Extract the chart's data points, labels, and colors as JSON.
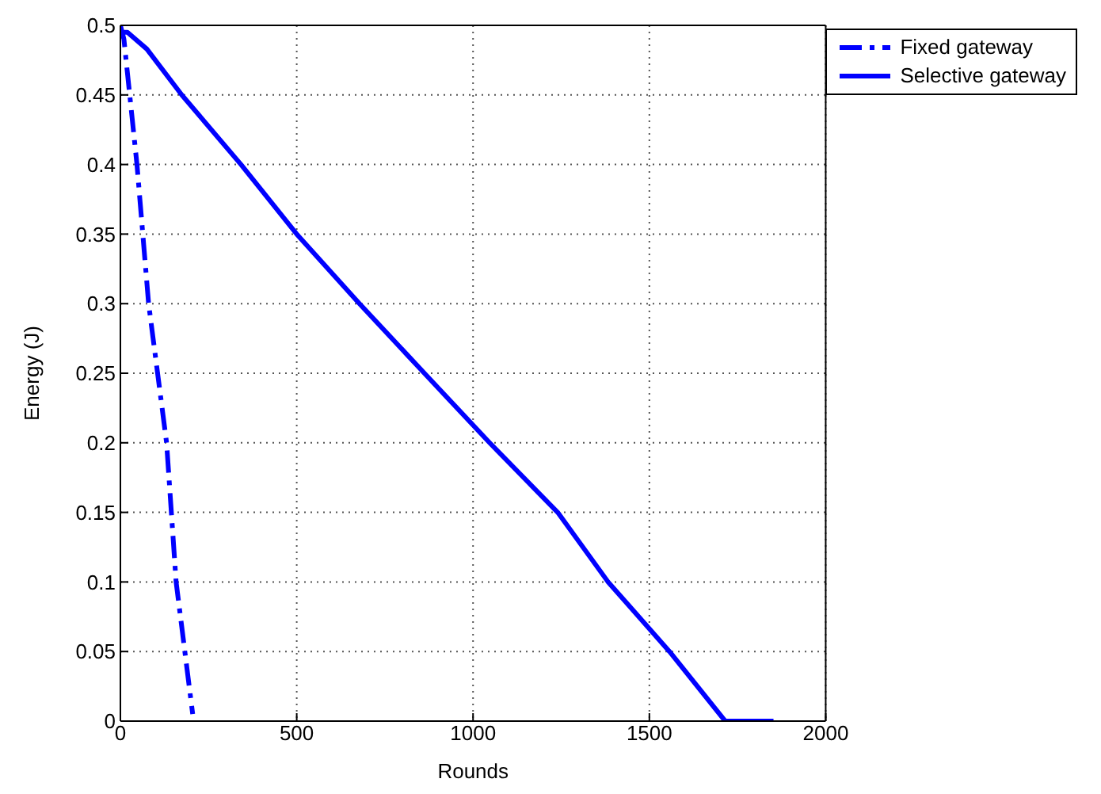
{
  "chart_data": {
    "type": "line",
    "xlabel": "Rounds",
    "ylabel": "Energy (J)",
    "xlim": [
      0,
      2000
    ],
    "xticks": [
      0,
      500,
      1000,
      1500,
      2000
    ],
    "ylim": [
      0,
      0.5
    ],
    "yticks": [
      0,
      0.05,
      0.1,
      0.15,
      0.2,
      0.25,
      0.3,
      0.35,
      0.4,
      0.45,
      0.5
    ],
    "grid": true,
    "legend": "top right",
    "marker": "none",
    "series": [
      {
        "name": "Fixed gateway",
        "color": "#0000ff",
        "line_style": "dashed",
        "x": [
          0,
          10,
          47,
          80,
          131,
          158,
          205
        ],
        "values": [
          0.5,
          0.49,
          0.4,
          0.3,
          0.2,
          0.1,
          0.005
        ]
      },
      {
        "name": "Selective gateway",
        "color": "#0000ff",
        "line_style": "solid",
        "x": [
          0,
          20,
          75,
          174,
          342,
          500,
          678,
          862,
          1047,
          1240,
          1383,
          1557,
          1715,
          1852
        ],
        "values": [
          0.495,
          0.495,
          0.483,
          0.45,
          0.4,
          0.35,
          0.3,
          0.25,
          0.2,
          0.15,
          0.1,
          0.05,
          0,
          0
        ]
      }
    ]
  }
}
